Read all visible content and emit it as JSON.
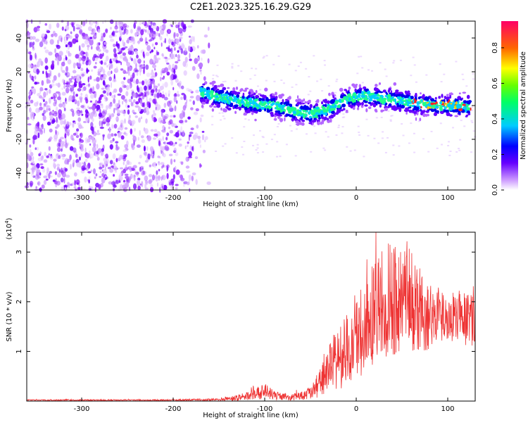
{
  "figure": {
    "title": "C2E1.2023.325.16.29.G29"
  },
  "chart_data": [
    {
      "type": "heatmap",
      "name": "spectrogram",
      "xlabel": "Height of straight line (km)",
      "ylabel": "Frequency (Hz)",
      "xlim": [
        -360,
        130
      ],
      "ylim": [
        -50,
        50
      ],
      "x_ticks": [
        -300,
        -200,
        -100,
        0,
        100
      ],
      "y_ticks": [
        -40,
        -20,
        0,
        20,
        40
      ],
      "colorbar": {
        "label": "Normalized spectral amplitude",
        "range": [
          0.0,
          0.95
        ],
        "ticks": [
          0.0,
          0.2,
          0.4,
          0.6,
          0.8
        ]
      },
      "features": {
        "noise_region_x": [
          -360,
          -160
        ],
        "noise_region_frequency_extent": [
          -50,
          50
        ],
        "signal_line": {
          "x": [
            -170,
            -150,
            -130,
            -110,
            -90,
            -70,
            -50,
            -30,
            -10,
            10,
            30,
            50,
            70,
            90,
            110,
            125
          ],
          "frequency": [
            8,
            5,
            3,
            1,
            0,
            -3,
            -5,
            -2,
            4,
            6,
            4,
            3,
            1,
            0,
            0,
            -1
          ],
          "peak_amplitude_region_x": [
            60,
            125
          ]
        }
      },
      "grid": false
    },
    {
      "type": "line",
      "name": "snr",
      "xlabel": "Height of straight line (km)",
      "ylabel": "SNR (10 * v/v)",
      "y_multiplier_label": "(x10",
      "y_multiplier_exp": "4",
      "y_multiplier_close": ")",
      "xlim": [
        -360,
        130
      ],
      "ylim": [
        0,
        3.4
      ],
      "x_ticks": [
        -300,
        -200,
        -100,
        0,
        100
      ],
      "y_ticks": [
        1,
        2,
        3
      ],
      "color": "#ee3333",
      "series": [
        {
          "x": [
            -360,
            -300,
            -200,
            -150,
            -130,
            -115,
            -100,
            -85,
            -70,
            -55,
            -45,
            -35,
            -25,
            -15,
            -5,
            0,
            10,
            20,
            30,
            40,
            50,
            60,
            70,
            80,
            90,
            100,
            110,
            120,
            130
          ],
          "y": [
            0.02,
            0.02,
            0.02,
            0.03,
            0.06,
            0.12,
            0.2,
            0.1,
            0.08,
            0.12,
            0.25,
            0.5,
            0.75,
            0.95,
            1.05,
            1.2,
            1.5,
            1.8,
            2.0,
            2.05,
            2.1,
            2.0,
            1.85,
            1.75,
            1.7,
            1.65,
            1.7,
            1.7,
            1.75
          ],
          "noise_amplitude": [
            0.01,
            0.01,
            0.01,
            0.02,
            0.05,
            0.08,
            0.12,
            0.06,
            0.05,
            0.08,
            0.15,
            0.3,
            0.45,
            0.55,
            0.6,
            0.65,
            0.7,
            0.8,
            0.9,
            0.9,
            0.9,
            0.8,
            0.65,
            0.55,
            0.45,
            0.4,
            0.4,
            0.45,
            0.5
          ]
        }
      ],
      "grid": false
    }
  ]
}
